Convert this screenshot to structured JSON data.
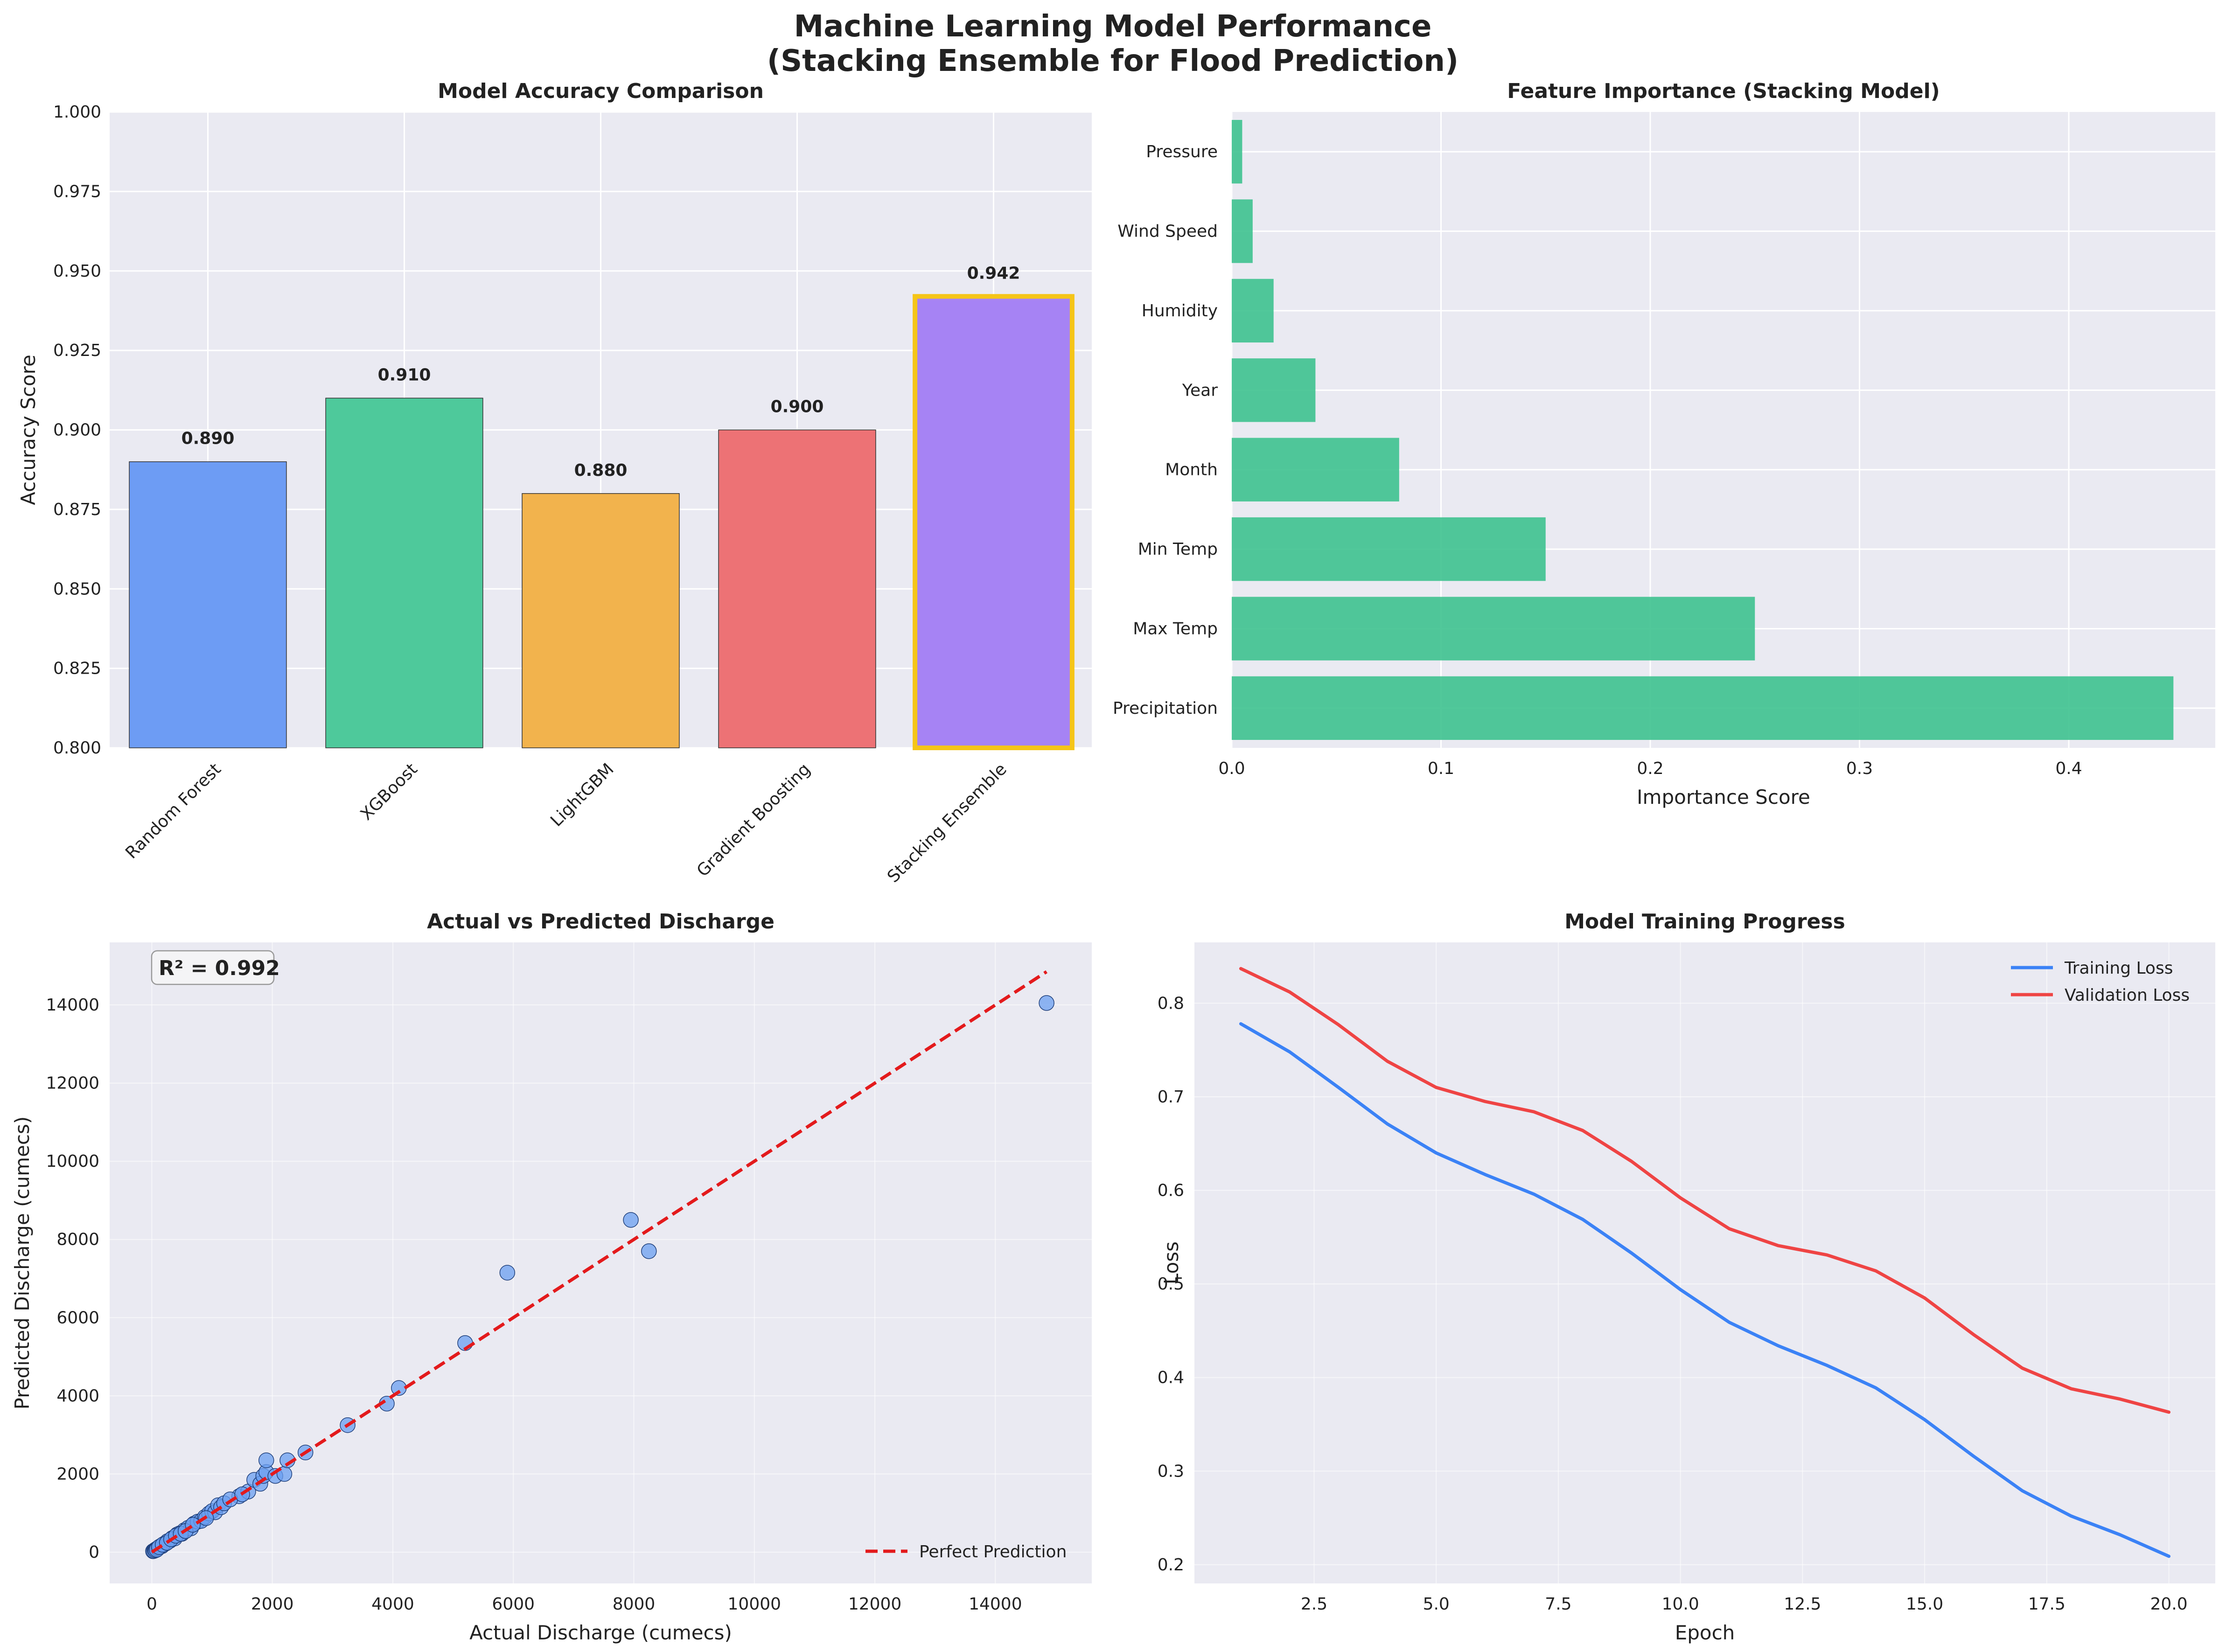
{
  "figure": {
    "title_line1": "Machine Learning Model Performance",
    "title_line2": "(Stacking Ensemble for Flood Prediction)"
  },
  "colors": {
    "panel_bg": "#eaeaf2",
    "grid": "#ffffff",
    "highlight": "#f5c518",
    "feature_bar": "#3ec28f",
    "training": "#3b82f6",
    "validation": "#ef4444",
    "scatter": "#6b9ff0",
    "perfect_line": "#e31a1c"
  },
  "chart_data": [
    {
      "id": "accuracy",
      "type": "bar",
      "title": "Model Accuracy Comparison",
      "xlabel": "",
      "ylabel": "Accuracy Score",
      "categories": [
        "Random Forest",
        "XGBoost",
        "LightGBM",
        "Gradient Boosting",
        "Stacking Ensemble"
      ],
      "values": [
        0.89,
        0.91,
        0.88,
        0.9,
        0.942
      ],
      "value_labels": [
        "0.890",
        "0.910",
        "0.880",
        "0.900",
        "0.942"
      ],
      "colors": [
        "#6d9cf4",
        "#4ec99b",
        "#f2b34d",
        "#ed7275",
        "#a683f4"
      ],
      "highlight_index": 4,
      "ylim": [
        0.8,
        1.0
      ],
      "yticks": [
        0.8,
        0.825,
        0.85,
        0.875,
        0.9,
        0.925,
        0.95,
        0.975,
        1.0
      ],
      "ytick_labels": [
        "0.800",
        "0.825",
        "0.850",
        "0.875",
        "0.900",
        "0.925",
        "0.950",
        "0.975",
        "1.000"
      ],
      "grid": true
    },
    {
      "id": "importance",
      "type": "bar",
      "orientation": "horizontal",
      "title": "Feature Importance (Stacking Model)",
      "xlabel": "Importance Score",
      "ylabel": "",
      "categories": [
        "Precipitation",
        "Max Temp",
        "Min Temp",
        "Month",
        "Year",
        "Humidity",
        "Wind Speed",
        "Pressure"
      ],
      "values": [
        0.45,
        0.25,
        0.15,
        0.08,
        0.04,
        0.02,
        0.01,
        0.005
      ],
      "xlim": [
        0,
        0.47
      ],
      "xticks": [
        0,
        0.1,
        0.2,
        0.3,
        0.4
      ],
      "xtick_labels": [
        "0.0",
        "0.1",
        "0.2",
        "0.3",
        "0.4"
      ],
      "grid": true
    },
    {
      "id": "scatter",
      "type": "scatter",
      "title": "Actual vs Predicted Discharge",
      "xlabel": "Actual Discharge (cumecs)",
      "ylabel": "Predicted Discharge (cumecs)",
      "xlim": [
        -700,
        15600
      ],
      "ylim": [
        -800,
        15600
      ],
      "xticks": [
        0,
        2000,
        4000,
        6000,
        8000,
        10000,
        12000,
        14000
      ],
      "xtick_labels": [
        "0",
        "2000",
        "4000",
        "6000",
        "8000",
        "10000",
        "12000",
        "14000"
      ],
      "yticks": [
        0,
        2000,
        4000,
        6000,
        8000,
        10000,
        12000,
        14000
      ],
      "ytick_labels": [
        "0",
        "2000",
        "4000",
        "6000",
        "8000",
        "10000",
        "12000",
        "14000"
      ],
      "annotation": "R² = 0.992",
      "legend": [
        "Perfect Prediction"
      ],
      "legend_position": "lower-right",
      "reference_line": [
        [
          0,
          0
        ],
        [
          14850,
          14850
        ]
      ],
      "points": [
        [
          20,
          25
        ],
        [
          35,
          30
        ],
        [
          50,
          55
        ],
        [
          60,
          45
        ],
        [
          75,
          80
        ],
        [
          90,
          95
        ],
        [
          110,
          105
        ],
        [
          130,
          140
        ],
        [
          150,
          160
        ],
        [
          170,
          155
        ],
        [
          200,
          210
        ],
        [
          230,
          220
        ],
        [
          260,
          280
        ],
        [
          300,
          290
        ],
        [
          340,
          360
        ],
        [
          380,
          350
        ],
        [
          420,
          450
        ],
        [
          460,
          480
        ],
        [
          500,
          470
        ],
        [
          540,
          560
        ],
        [
          600,
          620
        ],
        [
          650,
          610
        ],
        [
          700,
          730
        ],
        [
          760,
          780
        ],
        [
          820,
          800
        ],
        [
          880,
          900
        ],
        [
          950,
          990
        ],
        [
          1000,
          1050
        ],
        [
          1050,
          1020
        ],
        [
          1100,
          1200
        ],
        [
          1150,
          1150
        ],
        [
          1200,
          1250
        ],
        [
          1450,
          1430
        ],
        [
          1600,
          1550
        ],
        [
          1700,
          1850
        ],
        [
          1800,
          1750
        ],
        [
          1850,
          1950
        ],
        [
          1900,
          2050
        ],
        [
          1900,
          2350
        ],
        [
          2050,
          1950
        ],
        [
          2200,
          2000
        ],
        [
          2250,
          2350
        ],
        [
          2550,
          2550
        ],
        [
          3250,
          3250
        ],
        [
          3900,
          3800
        ],
        [
          4100,
          4200
        ],
        [
          5200,
          5350
        ],
        [
          5900,
          7150
        ],
        [
          7950,
          8500
        ],
        [
          8250,
          7700
        ],
        [
          14850,
          14050
        ],
        [
          80,
          60
        ],
        [
          120,
          130
        ],
        [
          180,
          190
        ],
        [
          250,
          240
        ],
        [
          320,
          330
        ],
        [
          400,
          420
        ],
        [
          480,
          470
        ],
        [
          560,
          540
        ],
        [
          680,
          700
        ],
        [
          900,
          870
        ],
        [
          1300,
          1350
        ],
        [
          1500,
          1480
        ]
      ]
    },
    {
      "id": "training",
      "type": "line",
      "title": "Model Training Progress",
      "xlabel": "Epoch",
      "ylabel": "Loss",
      "xlim": [
        0.05,
        20.95
      ],
      "ylim": [
        0.18,
        0.865
      ],
      "xticks": [
        2.5,
        5,
        7.5,
        10,
        12.5,
        15,
        17.5,
        20
      ],
      "xtick_labels": [
        "2.5",
        "5.0",
        "7.5",
        "10.0",
        "12.5",
        "15.0",
        "17.5",
        "20.0"
      ],
      "yticks": [
        0.2,
        0.3,
        0.4,
        0.5,
        0.6,
        0.7,
        0.8
      ],
      "ytick_labels": [
        "0.2",
        "0.3",
        "0.4",
        "0.5",
        "0.6",
        "0.7",
        "0.8"
      ],
      "legend_position": "top-right",
      "x": [
        1,
        2,
        3,
        4,
        5,
        6,
        7,
        8,
        9,
        10,
        11,
        12,
        13,
        14,
        15,
        16,
        17,
        18,
        19,
        20
      ],
      "series": [
        {
          "name": "Training Loss",
          "values": [
            0.778,
            0.748,
            0.71,
            0.671,
            0.64,
            0.617,
            0.596,
            0.569,
            0.533,
            0.494,
            0.459,
            0.434,
            0.413,
            0.389,
            0.355,
            0.316,
            0.279,
            0.252,
            0.232,
            0.209
          ]
        },
        {
          "name": "Validation Loss",
          "values": [
            0.837,
            0.812,
            0.777,
            0.738,
            0.71,
            0.695,
            0.684,
            0.664,
            0.631,
            0.592,
            0.559,
            0.541,
            0.531,
            0.514,
            0.485,
            0.446,
            0.41,
            0.388,
            0.377,
            0.363
          ]
        }
      ]
    }
  ]
}
